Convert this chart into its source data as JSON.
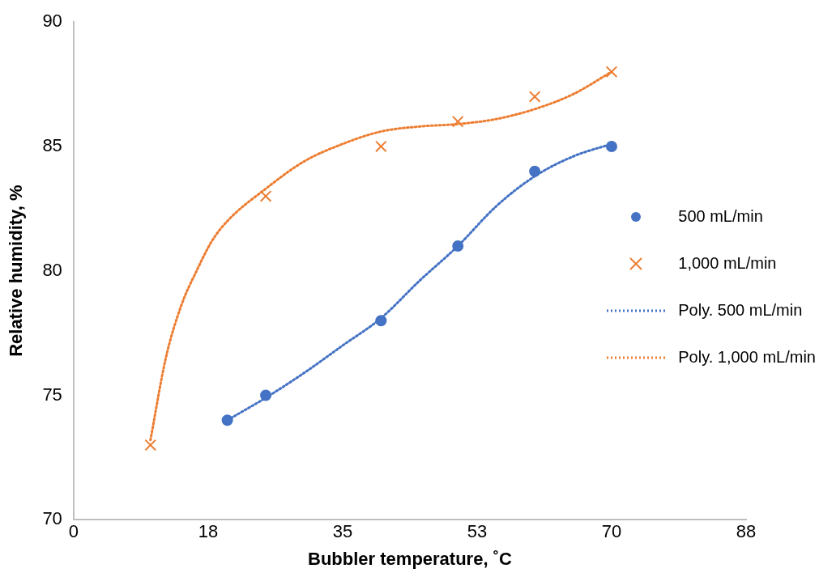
{
  "chart_data": {
    "type": "scatter",
    "xlabel": "Bubbler temperature, ˚C",
    "ylabel": "Relative humidity, %",
    "xlim": [
      0,
      87.5
    ],
    "xticks": [
      0,
      {
        "value": 17.5,
        "label": "18"
      },
      35,
      {
        "value": 52.5,
        "label": "53"
      },
      70,
      {
        "value": 87.5,
        "label": "88"
      }
    ],
    "ylim": [
      70,
      90
    ],
    "yticks": [
      70,
      75,
      80,
      85,
      90
    ],
    "grid": false,
    "legend": "right",
    "series": [
      {
        "name": "500 mL/min",
        "type": "scatter",
        "marker": "circle",
        "color": "#4472c4",
        "x": [
          20,
          25,
          40,
          50,
          60,
          70
        ],
        "values": [
          74,
          75,
          78,
          81,
          84,
          85
        ]
      },
      {
        "name": "1,000 mL/min",
        "type": "scatter",
        "marker": "cross",
        "color": "#ed7d31",
        "x": [
          10,
          25,
          40,
          50,
          60,
          70
        ],
        "values": [
          73,
          83,
          85,
          86,
          87,
          88
        ]
      },
      {
        "name": "Poly. 500 mL/min",
        "type": "line",
        "marker": "none",
        "line_style": "dotted",
        "color": "#4472c4",
        "x": [
          20,
          25,
          30,
          35,
          40,
          45,
          50,
          55,
          60,
          65,
          70
        ],
        "values": [
          74.0,
          74.9,
          75.9,
          77.0,
          78.1,
          79.6,
          81.0,
          82.6,
          83.8,
          84.6,
          85.1
        ]
      },
      {
        "name": "Poly. 1,000 mL/min",
        "type": "line",
        "marker": "none",
        "line_style": "dotted",
        "color": "#ed7d31",
        "x": [
          10,
          12,
          14,
          16,
          18,
          20,
          25,
          30,
          35,
          40,
          45,
          50,
          55,
          60,
          65,
          70
        ],
        "values": [
          73.2,
          76.5,
          78.6,
          80.0,
          81.2,
          82.0,
          83.3,
          84.4,
          85.1,
          85.6,
          85.8,
          85.9,
          86.1,
          86.5,
          87.1,
          88.0
        ]
      }
    ]
  }
}
